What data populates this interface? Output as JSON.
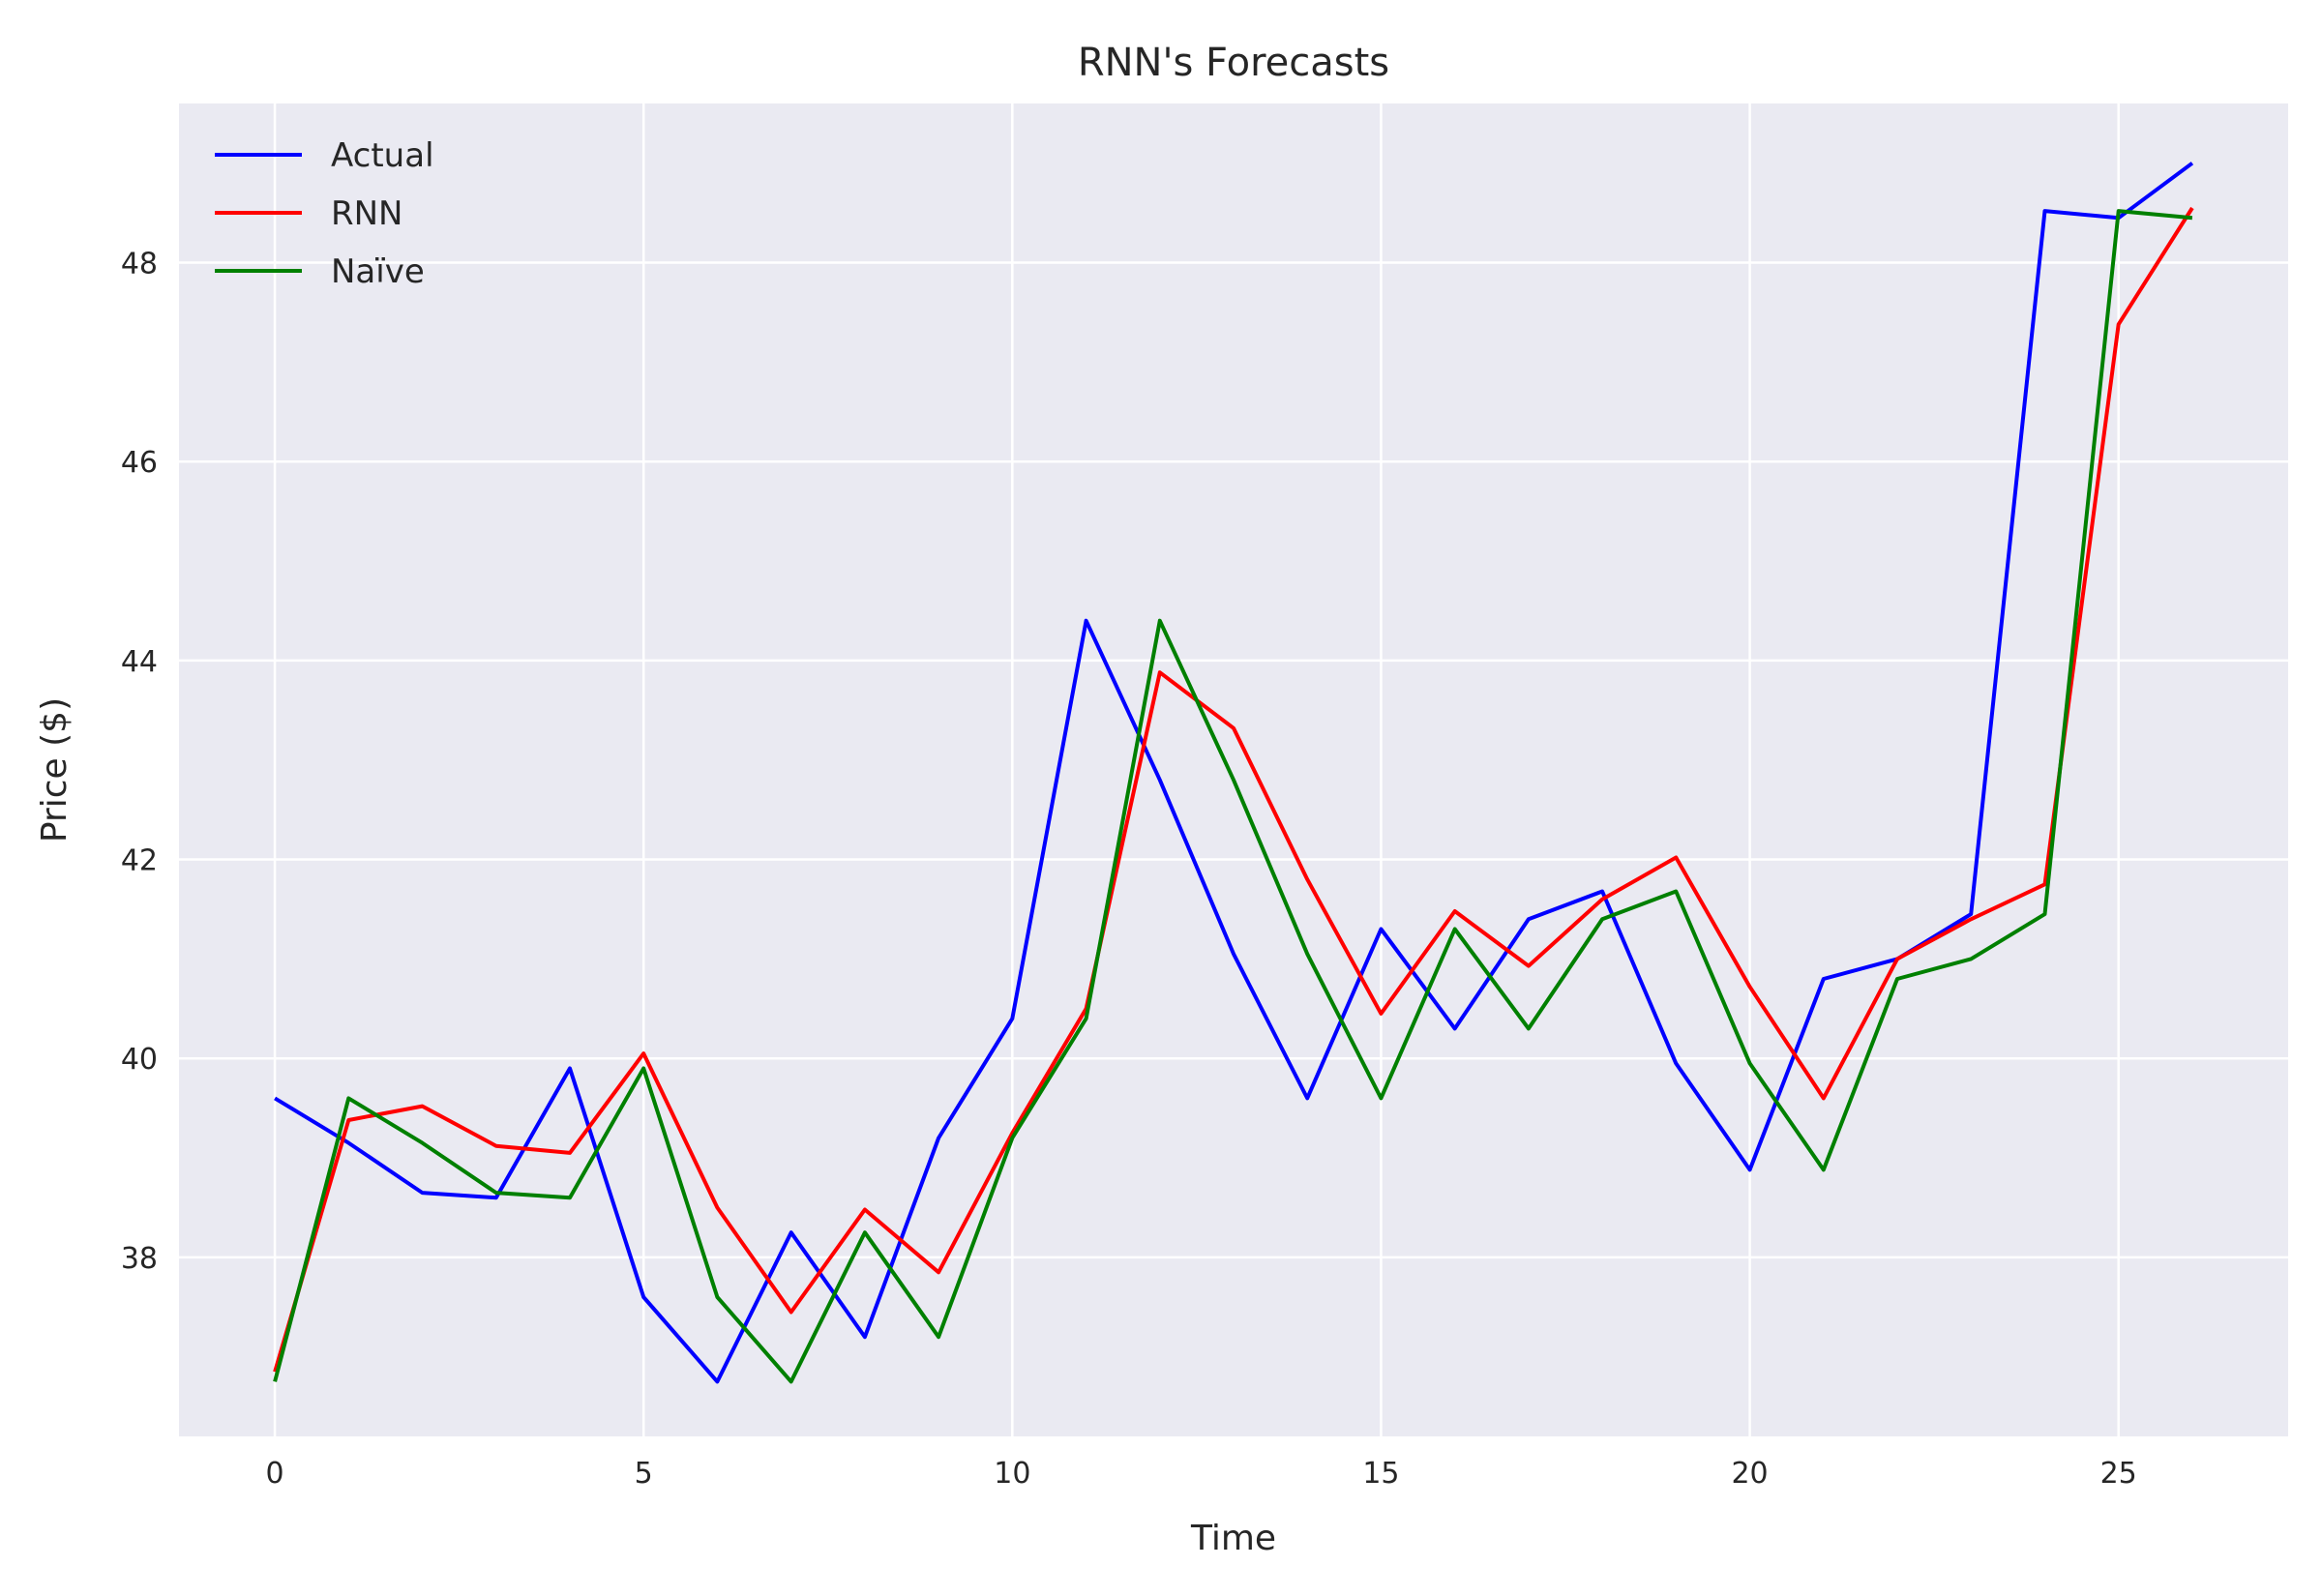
{
  "chart_data": {
    "type": "line",
    "title": "RNN's Forecasts",
    "xlabel": "Time",
    "ylabel": "Price ($)",
    "xlim": [
      -1.3,
      27.3
    ],
    "ylim": [
      36.2,
      49.6
    ],
    "xticks": [
      0,
      5,
      10,
      15,
      20,
      25
    ],
    "yticks": [
      38,
      40,
      42,
      44,
      46,
      48
    ],
    "grid": true,
    "legend_position": "top-left",
    "x": [
      0,
      1,
      2,
      3,
      4,
      5,
      6,
      7,
      8,
      9,
      10,
      11,
      12,
      13,
      14,
      15,
      16,
      17,
      18,
      19,
      20,
      21,
      22,
      23,
      24,
      25,
      26
    ],
    "series": [
      {
        "name": "Actual",
        "color": "#0000ff",
        "values": [
          39.6,
          39.15,
          38.65,
          38.6,
          39.9,
          37.6,
          36.75,
          38.25,
          37.2,
          39.2,
          40.4,
          44.4,
          42.8,
          41.05,
          39.6,
          41.3,
          40.3,
          41.4,
          41.68,
          39.95,
          38.88,
          40.8,
          41.0,
          41.45,
          48.52,
          48.45,
          49.0
        ]
      },
      {
        "name": "RNN",
        "color": "#ff0000",
        "values": [
          36.85,
          39.38,
          39.52,
          39.12,
          39.05,
          40.05,
          38.5,
          37.45,
          38.48,
          37.85,
          39.25,
          40.5,
          43.88,
          43.32,
          41.8,
          40.45,
          41.48,
          40.93,
          41.6,
          42.02,
          40.72,
          39.6,
          41.0,
          41.4,
          41.75,
          47.38,
          48.55
        ]
      },
      {
        "name": "Naïve",
        "color": "#008000",
        "values": [
          36.75,
          39.6,
          39.15,
          38.65,
          38.6,
          39.9,
          37.6,
          36.75,
          38.25,
          37.2,
          39.2,
          40.4,
          44.4,
          42.8,
          41.05,
          39.6,
          41.3,
          40.3,
          41.4,
          41.68,
          39.95,
          38.88,
          40.8,
          41.0,
          41.45,
          48.52,
          48.45
        ]
      }
    ]
  }
}
